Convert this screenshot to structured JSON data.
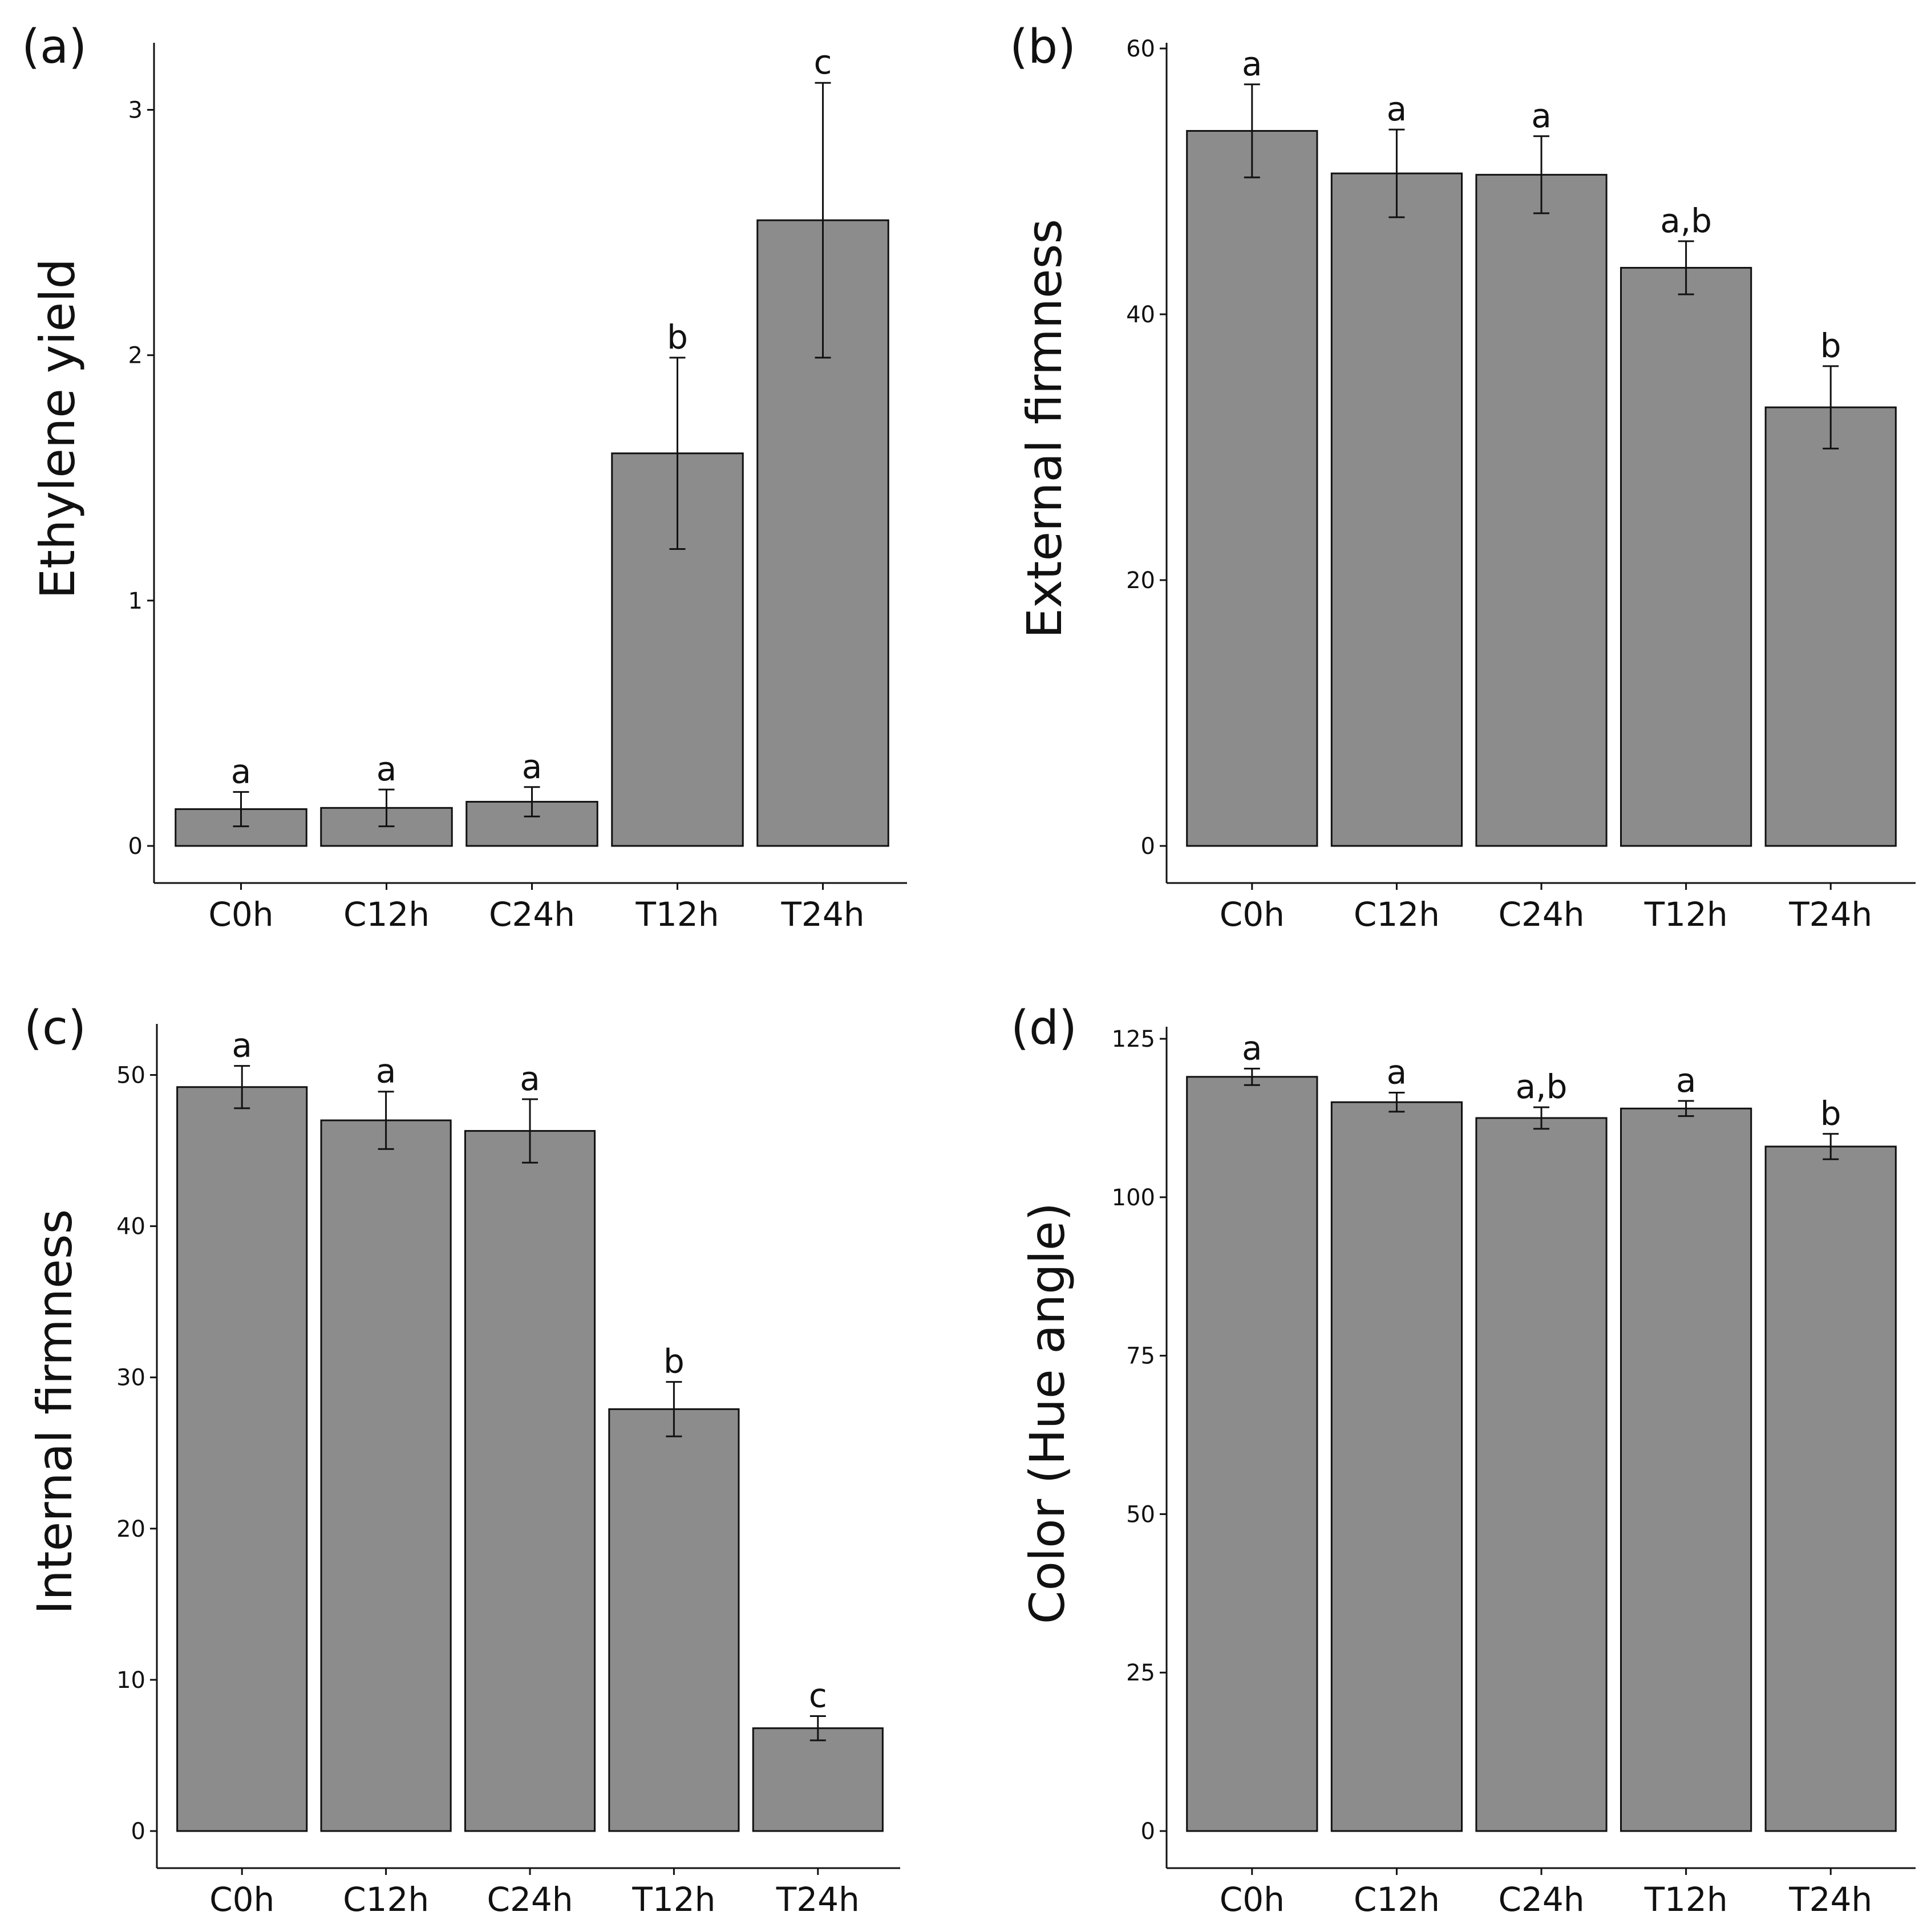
{
  "chart_data": [
    {
      "id": "a",
      "type": "bar",
      "panel_label": "(a)",
      "title": "",
      "xlabel": "",
      "ylabel": "Ethylene yield",
      "categories": [
        "C0h",
        "C12h",
        "C24h",
        "T12h",
        "T24h"
      ],
      "values": [
        0.15,
        0.155,
        0.18,
        1.6,
        2.55
      ],
      "errors": [
        0.07,
        0.075,
        0.06,
        0.39,
        0.56
      ],
      "significance": [
        "a",
        "a",
        "a",
        "b",
        "c"
      ],
      "ylim": [
        0,
        3.25
      ],
      "yticks": [
        0,
        1,
        2,
        3
      ],
      "grid": false
    },
    {
      "id": "b",
      "type": "bar",
      "panel_label": "(b)",
      "title": "",
      "xlabel": "",
      "ylabel": "External firmness",
      "categories": [
        "C0h",
        "C12h",
        "C24h",
        "T12h",
        "T24h"
      ],
      "values": [
        53.8,
        50.6,
        50.5,
        43.5,
        33.0
      ],
      "errors": [
        3.5,
        3.3,
        2.9,
        2.0,
        3.1
      ],
      "significance": [
        "a",
        "a",
        "a",
        "a,b",
        "b"
      ],
      "ylim": [
        0,
        60
      ],
      "yticks": [
        0,
        20,
        40,
        60
      ],
      "grid": false
    },
    {
      "id": "c",
      "type": "bar",
      "panel_label": "(c)",
      "title": "",
      "xlabel": "",
      "ylabel": "Internal firmness",
      "categories": [
        "C0h",
        "C12h",
        "C24h",
        "T12h",
        "T24h"
      ],
      "values": [
        49.2,
        47.0,
        46.3,
        27.9,
        6.8
      ],
      "errors": [
        1.4,
        1.9,
        2.1,
        1.8,
        0.8
      ],
      "significance": [
        "a",
        "a",
        "a",
        "b",
        "c"
      ],
      "ylim": [
        0,
        53
      ],
      "yticks": [
        0,
        10,
        20,
        30,
        40,
        50
      ],
      "grid": false
    },
    {
      "id": "d",
      "type": "bar",
      "panel_label": "(d)",
      "title": "",
      "xlabel": "",
      "ylabel": "Color (Hue angle)",
      "categories": [
        "C0h",
        "C12h",
        "C24h",
        "T12h",
        "T24h"
      ],
      "values": [
        119,
        115,
        112.5,
        114,
        108
      ],
      "errors": [
        1.3,
        1.5,
        1.7,
        1.2,
        2.0
      ],
      "significance": [
        "a",
        "a",
        "a,b",
        "a",
        "b"
      ],
      "ylim": [
        0,
        126
      ],
      "yticks": [
        0,
        25,
        50,
        75,
        100,
        125
      ],
      "grid": false
    }
  ]
}
